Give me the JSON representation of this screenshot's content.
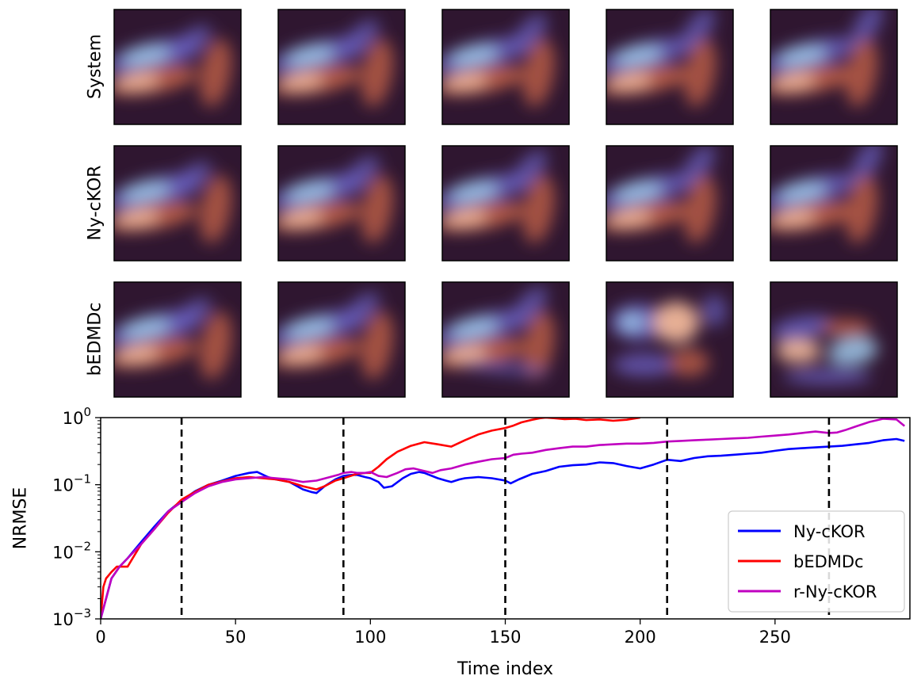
{
  "chart_data": [
    {
      "type": "image-grid",
      "row_labels": [
        "System",
        "Ny-cKOR",
        "bEDMDc"
      ],
      "columns": 5,
      "colormap": "twilight_shifted",
      "fields": [
        [
          "S0",
          "S1",
          "S2",
          "S3",
          "S4"
        ],
        [
          "N0",
          "N1",
          "N2",
          "N3",
          "N4"
        ],
        [
          "B0",
          "B1",
          "B2",
          "B3",
          "B4"
        ]
      ]
    },
    {
      "type": "line",
      "xlabel": "Time index",
      "ylabel": "NRMSE",
      "yscale": "log",
      "xlim": [
        0,
        300
      ],
      "ylim": [
        0.001,
        1
      ],
      "xticks": [
        0,
        50,
        100,
        150,
        200,
        250
      ],
      "xtick_labels": [
        "0",
        "50",
        "100",
        "150",
        "200",
        "250"
      ],
      "yticks": [
        0.001,
        0.01,
        0.1,
        1
      ],
      "ytick_labels": [
        {
          "base": "10",
          "exp": "−3"
        },
        {
          "base": "10",
          "exp": "−2"
        },
        {
          "base": "10",
          "exp": "−1"
        },
        {
          "base": "10",
          "exp": "0"
        }
      ],
      "vlines": [
        30,
        90,
        150,
        210,
        270
      ],
      "legend_location": "lower right",
      "series": [
        {
          "name": "Ny-cKOR",
          "color": "#0000ff",
          "x": [
            0,
            2,
            4,
            7,
            10,
            15,
            20,
            25,
            30,
            35,
            40,
            45,
            50,
            55,
            58,
            62,
            65,
            70,
            75,
            78,
            80,
            83,
            87,
            90,
            93,
            95,
            98,
            100,
            103,
            105,
            108,
            112,
            115,
            118,
            120,
            125,
            128,
            130,
            133,
            135,
            140,
            145,
            150,
            152,
            155,
            160,
            165,
            170,
            175,
            180,
            185,
            190,
            195,
            200,
            205,
            210,
            215,
            220,
            225,
            230,
            235,
            240,
            245,
            250,
            255,
            260,
            265,
            270,
            275,
            280,
            285,
            290,
            295,
            298
          ],
          "values": [
            0.001,
            0.002,
            0.004,
            0.006,
            0.008,
            0.014,
            0.024,
            0.04,
            0.058,
            0.08,
            0.1,
            0.115,
            0.135,
            0.15,
            0.155,
            0.13,
            0.12,
            0.11,
            0.085,
            0.078,
            0.075,
            0.095,
            0.12,
            0.135,
            0.14,
            0.14,
            0.13,
            0.125,
            0.11,
            0.09,
            0.095,
            0.125,
            0.145,
            0.155,
            0.15,
            0.125,
            0.115,
            0.11,
            0.12,
            0.125,
            0.13,
            0.125,
            0.115,
            0.105,
            0.12,
            0.145,
            0.16,
            0.185,
            0.195,
            0.2,
            0.215,
            0.21,
            0.19,
            0.175,
            0.2,
            0.235,
            0.225,
            0.25,
            0.265,
            0.27,
            0.28,
            0.29,
            0.3,
            0.32,
            0.34,
            0.35,
            0.36,
            0.37,
            0.38,
            0.4,
            0.42,
            0.46,
            0.48,
            0.45
          ]
        },
        {
          "name": "bEDMDc",
          "color": "#ff0000",
          "x": [
            0,
            1,
            2,
            4,
            6,
            8,
            10,
            15,
            20,
            25,
            30,
            35,
            40,
            45,
            50,
            55,
            60,
            65,
            70,
            75,
            80,
            83,
            87,
            90,
            95,
            98,
            100,
            103,
            106,
            110,
            115,
            120,
            125,
            130,
            135,
            140,
            145,
            150,
            153,
            156,
            160,
            163,
            165,
            168,
            172,
            176,
            180,
            185,
            190,
            195,
            200
          ],
          "values": [
            0.001,
            0.003,
            0.004,
            0.005,
            0.006,
            0.006,
            0.006,
            0.013,
            0.022,
            0.038,
            0.06,
            0.078,
            0.1,
            0.112,
            0.125,
            0.13,
            0.125,
            0.12,
            0.11,
            0.095,
            0.085,
            0.095,
            0.115,
            0.125,
            0.145,
            0.15,
            0.15,
            0.185,
            0.24,
            0.31,
            0.38,
            0.43,
            0.4,
            0.37,
            0.46,
            0.56,
            0.64,
            0.7,
            0.76,
            0.85,
            0.93,
            0.98,
            1.0,
            0.98,
            0.95,
            0.96,
            0.92,
            0.94,
            0.9,
            0.93,
            1.0
          ]
        },
        {
          "name": "r-Ny-cKOR",
          "color": "#c000c0",
          "x": [
            0,
            2,
            4,
            7,
            10,
            15,
            20,
            25,
            30,
            35,
            40,
            45,
            50,
            55,
            60,
            65,
            70,
            75,
            80,
            85,
            88,
            90,
            93,
            95,
            98,
            100,
            103,
            106,
            110,
            113,
            116,
            120,
            123,
            126,
            130,
            135,
            140,
            145,
            150,
            153,
            156,
            160,
            165,
            170,
            175,
            180,
            185,
            190,
            195,
            200,
            205,
            210,
            215,
            220,
            225,
            230,
            235,
            240,
            245,
            250,
            255,
            260,
            265,
            270,
            273,
            276,
            280,
            285,
            290,
            295,
            298
          ],
          "values": [
            0.001,
            0.002,
            0.004,
            0.006,
            0.008,
            0.013,
            0.022,
            0.04,
            0.055,
            0.075,
            0.095,
            0.11,
            0.12,
            0.125,
            0.13,
            0.125,
            0.12,
            0.11,
            0.115,
            0.13,
            0.14,
            0.15,
            0.155,
            0.15,
            0.15,
            0.155,
            0.135,
            0.13,
            0.15,
            0.17,
            0.175,
            0.16,
            0.15,
            0.165,
            0.175,
            0.2,
            0.22,
            0.24,
            0.25,
            0.28,
            0.29,
            0.3,
            0.33,
            0.35,
            0.37,
            0.37,
            0.39,
            0.4,
            0.41,
            0.41,
            0.42,
            0.44,
            0.45,
            0.46,
            0.47,
            0.48,
            0.49,
            0.5,
            0.52,
            0.54,
            0.56,
            0.59,
            0.62,
            0.59,
            0.6,
            0.65,
            0.74,
            0.86,
            0.96,
            0.94,
            0.75
          ]
        }
      ]
    }
  ]
}
